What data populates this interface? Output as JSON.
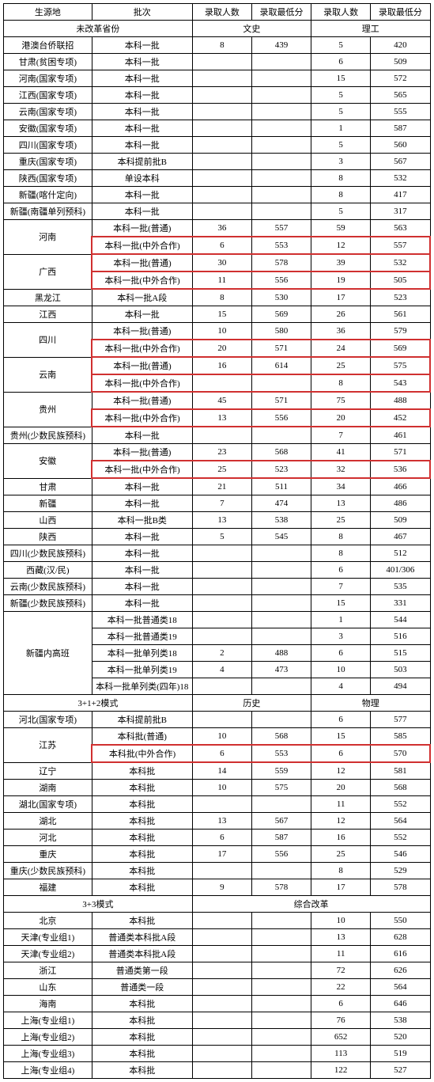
{
  "columns": {
    "place": "生源地",
    "batch": "批次",
    "count1": "录取人数",
    "min1": "录取最低分",
    "count2": "录取人数",
    "min2": "录取最低分"
  },
  "sections": [
    {
      "title": "未改革省份",
      "sub_left": "文史",
      "sub_right": "理工",
      "rows": [
        {
          "place": "港澳台侨联招",
          "batch": "本科一批",
          "c1": "8",
          "m1": "439",
          "c2": "5",
          "m2": "420"
        },
        {
          "place": "甘肃(贫困专项)",
          "batch": "本科一批",
          "c1": "",
          "m1": "",
          "c2": "6",
          "m2": "509"
        },
        {
          "place": "河南(国家专项)",
          "batch": "本科一批",
          "c1": "",
          "m1": "",
          "c2": "15",
          "m2": "572"
        },
        {
          "place": "江西(国家专项)",
          "batch": "本科一批",
          "c1": "",
          "m1": "",
          "c2": "5",
          "m2": "565"
        },
        {
          "place": "云南(国家专项)",
          "batch": "本科一批",
          "c1": "",
          "m1": "",
          "c2": "5",
          "m2": "555"
        },
        {
          "place": "安徽(国家专项)",
          "batch": "本科一批",
          "c1": "",
          "m1": "",
          "c2": "1",
          "m2": "587"
        },
        {
          "place": "四川(国家专项)",
          "batch": "本科一批",
          "c1": "",
          "m1": "",
          "c2": "5",
          "m2": "560"
        },
        {
          "place": "重庆(国家专项)",
          "batch": "本科提前批B",
          "c1": "",
          "m1": "",
          "c2": "3",
          "m2": "567"
        },
        {
          "place": "陕西(国家专项)",
          "batch": "单设本科",
          "c1": "",
          "m1": "",
          "c2": "8",
          "m2": "532"
        },
        {
          "place": "新疆(喀什定向)",
          "batch": "本科一批",
          "c1": "",
          "m1": "",
          "c2": "8",
          "m2": "417"
        },
        {
          "place": "新疆(南疆单列预科)",
          "batch": "本科一批",
          "c1": "",
          "m1": "",
          "c2": "5",
          "m2": "317"
        },
        {
          "place": "河南",
          "span": 2,
          "sub": [
            {
              "batch": "本科一批(普通)",
              "c1": "36",
              "m1": "557",
              "c2": "59",
              "m2": "563"
            },
            {
              "batch": "本科一批(中外合作)",
              "c1": "6",
              "m1": "553",
              "c2": "12",
              "m2": "557",
              "hl": true
            }
          ]
        },
        {
          "place": "广西",
          "span": 2,
          "sub": [
            {
              "batch": "本科一批(普通)",
              "c1": "30",
              "m1": "578",
              "c2": "39",
              "m2": "532",
              "hl": true
            },
            {
              "batch": "本科一批(中外合作)",
              "c1": "11",
              "m1": "556",
              "c2": "19",
              "m2": "505",
              "hl": true
            }
          ]
        },
        {
          "place": "黑龙江",
          "batch": "本科一批A段",
          "c1": "8",
          "m1": "530",
          "c2": "17",
          "m2": "523"
        },
        {
          "place": "江西",
          "batch": "本科一批",
          "c1": "15",
          "m1": "569",
          "c2": "26",
          "m2": "561"
        },
        {
          "place": "四川",
          "span": 2,
          "sub": [
            {
              "batch": "本科一批(普通)",
              "c1": "10",
              "m1": "580",
              "c2": "36",
              "m2": "579"
            },
            {
              "batch": "本科一批(中外合作)",
              "c1": "20",
              "m1": "571",
              "c2": "24",
              "m2": "569",
              "hl": true
            }
          ]
        },
        {
          "place": "云南",
          "span": 2,
          "sub": [
            {
              "batch": "本科一批(普通)",
              "c1": "16",
              "m1": "614",
              "c2": "25",
              "m2": "575",
              "hl": true
            },
            {
              "batch": "本科一批(中外合作)",
              "c1": "",
              "m1": "",
              "c2": "8",
              "m2": "543",
              "hl": true
            }
          ]
        },
        {
          "place": "贵州",
          "span": 2,
          "sub": [
            {
              "batch": "本科一批(普通)",
              "c1": "45",
              "m1": "571",
              "c2": "75",
              "m2": "488"
            },
            {
              "batch": "本科一批(中外合作)",
              "c1": "13",
              "m1": "556",
              "c2": "20",
              "m2": "452",
              "hl": true
            }
          ]
        },
        {
          "place": "贵州(少数民族预科)",
          "batch": "本科一批",
          "c1": "",
          "m1": "",
          "c2": "7",
          "m2": "461"
        },
        {
          "place": "安徽",
          "span": 2,
          "sub": [
            {
              "batch": "本科一批(普通)",
              "c1": "23",
              "m1": "568",
              "c2": "41",
              "m2": "571"
            },
            {
              "batch": "本科一批(中外合作)",
              "c1": "25",
              "m1": "523",
              "c2": "32",
              "m2": "536",
              "hl": true
            }
          ]
        },
        {
          "place": "甘肃",
          "batch": "本科一批",
          "c1": "21",
          "m1": "511",
          "c2": "34",
          "m2": "466"
        },
        {
          "place": "新疆",
          "batch": "本科一批",
          "c1": "7",
          "m1": "474",
          "c2": "13",
          "m2": "486"
        },
        {
          "place": "山西",
          "batch": "本科一批B类",
          "c1": "13",
          "m1": "538",
          "c2": "25",
          "m2": "509"
        },
        {
          "place": "陕西",
          "batch": "本科一批",
          "c1": "5",
          "m1": "545",
          "c2": "8",
          "m2": "467"
        },
        {
          "place": "四川(少数民族预科)",
          "batch": "本科一批",
          "c1": "",
          "m1": "",
          "c2": "8",
          "m2": "512"
        },
        {
          "place": "西藏(汉/民)",
          "batch": "本科一批",
          "c1": "",
          "m1": "",
          "c2": "6",
          "m2": "401/306"
        },
        {
          "place": "云南(少数民族预科)",
          "batch": "本科一批",
          "c1": "",
          "m1": "",
          "c2": "7",
          "m2": "535"
        },
        {
          "place": "新疆(少数民族预科)",
          "batch": "本科一批",
          "c1": "",
          "m1": "",
          "c2": "15",
          "m2": "331"
        },
        {
          "place": "新疆内高班",
          "span": 5,
          "sub": [
            {
              "batch": "本科一批普通类18",
              "c1": "",
              "m1": "",
              "c2": "1",
              "m2": "544"
            },
            {
              "batch": "本科一批普通类19",
              "c1": "",
              "m1": "",
              "c2": "3",
              "m2": "516"
            },
            {
              "batch": "本科一批单列类18",
              "c1": "2",
              "m1": "488",
              "c2": "6",
              "m2": "515"
            },
            {
              "batch": "本科一批单列类19",
              "c1": "4",
              "m1": "473",
              "c2": "10",
              "m2": "503"
            },
            {
              "batch": "本科一批单列类(四年)18",
              "c1": "",
              "m1": "",
              "c2": "4",
              "m2": "494"
            }
          ]
        }
      ]
    },
    {
      "title": "3+1+2模式",
      "sub_left": "历史",
      "sub_right": "物理",
      "rows": [
        {
          "place": "河北(国家专项)",
          "batch": "本科提前批B",
          "c1": "",
          "m1": "",
          "c2": "6",
          "m2": "577"
        },
        {
          "place": "江苏",
          "span": 2,
          "sub": [
            {
              "batch": "本科批(普通)",
              "c1": "10",
              "m1": "568",
              "c2": "15",
              "m2": "585"
            },
            {
              "batch": "本科批(中外合作)",
              "c1": "6",
              "m1": "553",
              "c2": "6",
              "m2": "570",
              "hl": true
            }
          ]
        },
        {
          "place": "辽宁",
          "batch": "本科批",
          "c1": "14",
          "m1": "559",
          "c2": "12",
          "m2": "581"
        },
        {
          "place": "湖南",
          "batch": "本科批",
          "c1": "10",
          "m1": "575",
          "c2": "20",
          "m2": "568"
        },
        {
          "place": "湖北(国家专项)",
          "batch": "本科批",
          "c1": "",
          "m1": "",
          "c2": "11",
          "m2": "552"
        },
        {
          "place": "湖北",
          "batch": "本科批",
          "c1": "13",
          "m1": "567",
          "c2": "12",
          "m2": "564"
        },
        {
          "place": "河北",
          "batch": "本科批",
          "c1": "6",
          "m1": "587",
          "c2": "16",
          "m2": "552"
        },
        {
          "place": "重庆",
          "batch": "本科批",
          "c1": "17",
          "m1": "556",
          "c2": "25",
          "m2": "546"
        },
        {
          "place": "重庆(少数民族预科)",
          "batch": "本科批",
          "c1": "",
          "m1": "",
          "c2": "8",
          "m2": "529"
        },
        {
          "place": "福建",
          "batch": "本科批",
          "c1": "9",
          "m1": "578",
          "c2": "17",
          "m2": "578"
        }
      ]
    },
    {
      "title": "3+3模式",
      "sub_full": "综合改革",
      "rows": [
        {
          "place": "北京",
          "batch": "本科批",
          "c1": "",
          "m1": "",
          "c2": "10",
          "m2": "550"
        },
        {
          "place": "天津(专业组1)",
          "batch": "普通类本科批A段",
          "c1": "",
          "m1": "",
          "c2": "13",
          "m2": "628"
        },
        {
          "place": "天津(专业组2)",
          "batch": "普通类本科批A段",
          "c1": "",
          "m1": "",
          "c2": "11",
          "m2": "616"
        },
        {
          "place": "浙江",
          "batch": "普通类第一段",
          "c1": "",
          "m1": "",
          "c2": "72",
          "m2": "626"
        },
        {
          "place": "山东",
          "batch": "普通类一段",
          "c1": "",
          "m1": "",
          "c2": "22",
          "m2": "564"
        },
        {
          "place": "海南",
          "batch": "本科批",
          "c1": "",
          "m1": "",
          "c2": "6",
          "m2": "646"
        },
        {
          "place": "上海(专业组1)",
          "batch": "本科批",
          "c1": "",
          "m1": "",
          "c2": "76",
          "m2": "538"
        },
        {
          "place": "上海(专业组2)",
          "batch": "本科批",
          "c1": "",
          "m1": "",
          "c2": "652",
          "m2": "520"
        },
        {
          "place": "上海(专业组3)",
          "batch": "本科批",
          "c1": "",
          "m1": "",
          "c2": "113",
          "m2": "519"
        },
        {
          "place": "上海(专业组4)",
          "batch": "本科批",
          "c1": "",
          "m1": "",
          "c2": "122",
          "m2": "527"
        }
      ]
    }
  ]
}
